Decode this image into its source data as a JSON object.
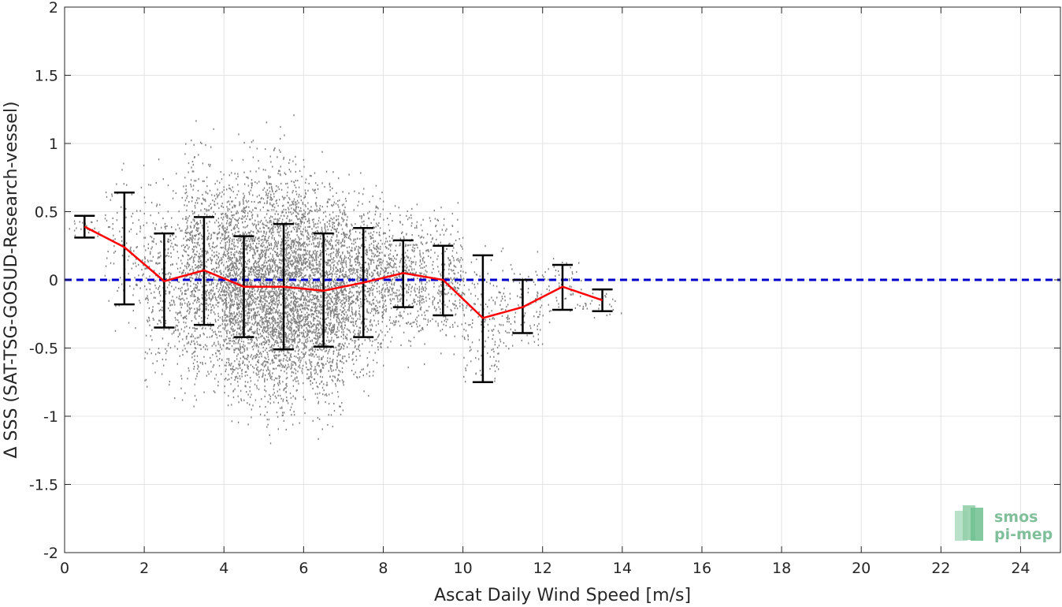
{
  "chart_data": {
    "type": "scatter",
    "title": "",
    "xlabel": "Ascat Daily Wind Speed [m/s]",
    "ylabel": "Δ SSS (SAT-TSG-GOSUD-Research-vessel)",
    "xlim": [
      0,
      25
    ],
    "ylim": [
      -2,
      2
    ],
    "xticks": [
      0,
      2,
      4,
      6,
      8,
      10,
      12,
      14,
      16,
      18,
      20,
      22,
      24
    ],
    "yticks": [
      -2,
      -1.5,
      -1,
      -0.5,
      0,
      0.5,
      1,
      1.5,
      2
    ],
    "ytick_labels": [
      "-2",
      "-1.5",
      "-1",
      "-0.5",
      "0",
      "0.5",
      "1",
      "1.5",
      "2"
    ],
    "grid": true,
    "scatter_color": "#808080",
    "mean_line_color": "#ff0000",
    "errorbar_color": "#000000",
    "zero_line_color": "#0000cc",
    "binned": {
      "x": [
        0.5,
        1.5,
        2.5,
        3.5,
        4.5,
        5.5,
        6.5,
        7.5,
        8.5,
        9.5,
        10.5,
        11.5,
        12.5,
        13.5
      ],
      "mean": [
        0.39,
        0.24,
        -0.01,
        0.07,
        -0.05,
        -0.05,
        -0.08,
        -0.02,
        0.05,
        0.0,
        -0.28,
        -0.2,
        -0.05,
        -0.15
      ],
      "upper": [
        0.47,
        0.64,
        0.34,
        0.46,
        0.32,
        0.41,
        0.34,
        0.38,
        0.29,
        0.25,
        0.18,
        0.0,
        0.11,
        -0.07
      ],
      "lower": [
        0.31,
        -0.18,
        -0.35,
        -0.33,
        -0.42,
        -0.51,
        -0.49,
        -0.42,
        -0.2,
        -0.26,
        -0.75,
        -0.39,
        -0.22,
        -0.23
      ]
    },
    "scatter_density": {
      "x": [
        0.5,
        1.5,
        2.5,
        3.5,
        4.5,
        5.5,
        6.5,
        7.5,
        8.5,
        9.5,
        10.5,
        11.5,
        12.5,
        13.5
      ],
      "spread": [
        0.05,
        0.35,
        0.45,
        0.5,
        0.5,
        0.55,
        0.5,
        0.4,
        0.3,
        0.3,
        0.3,
        0.2,
        0.15,
        0.08
      ],
      "count": [
        25,
        120,
        350,
        900,
        1600,
        1900,
        1500,
        800,
        450,
        300,
        160,
        110,
        60,
        25
      ]
    }
  },
  "logo": {
    "line1": "smos",
    "line2": "pi-mep",
    "color": "#7fbf9a"
  }
}
